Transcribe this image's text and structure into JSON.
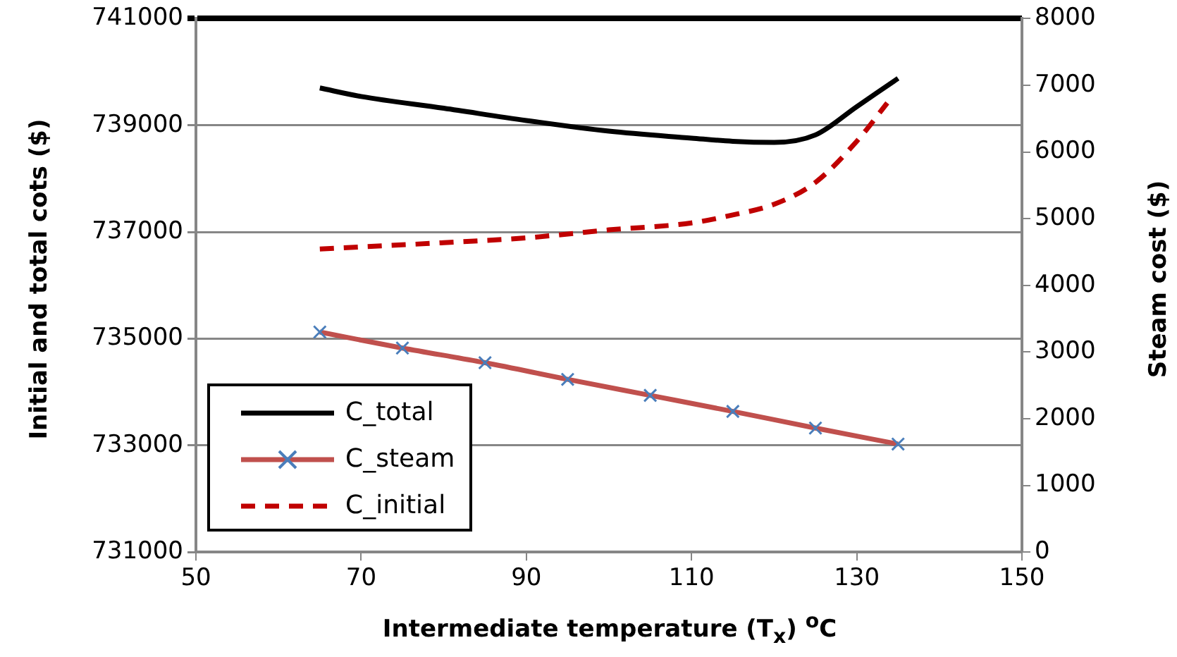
{
  "chart_data": {
    "type": "line",
    "xlabel": "Intermediate temperature (T$_{x}$) $^{o}$C",
    "ylabel": "Initial and total cots ($)",
    "y2label": "Steam cost ($)",
    "xlim": [
      50,
      150
    ],
    "xticks": [
      50,
      70,
      90,
      110,
      130,
      150
    ],
    "ylim": [
      731000,
      741000
    ],
    "yticks": [
      731000,
      733000,
      735000,
      737000,
      739000,
      741000
    ],
    "y2lim": [
      0,
      8000
    ],
    "y2ticks": [
      0,
      1000,
      2000,
      3000,
      4000,
      5000,
      6000,
      7000,
      8000
    ],
    "grid": "y",
    "legend": "bottom left",
    "series": [
      {
        "name": "C_total",
        "color": "#000000",
        "marker": "none",
        "line_style": "solid",
        "x": [
          65,
          70,
          80,
          90,
          100,
          110,
          115,
          120,
          125,
          130,
          135
        ],
        "values": [
          739700,
          739540,
          739320,
          739090,
          738890,
          738760,
          738700,
          738680,
          738820,
          739350,
          739880
        ]
      },
      {
        "name": "C_steam",
        "color": "#c0504d",
        "marker": "cross",
        "line_style": "solid",
        "axis": "y2",
        "x": [
          65,
          75,
          85,
          95,
          105,
          115,
          125,
          135
        ],
        "values": [
          3300,
          3060,
          2840,
          2590,
          2350,
          2110,
          1860,
          1620
        ]
      },
      {
        "name": "C_initial",
        "color": "#c00000",
        "marker": "none",
        "line_style": "dashed",
        "x": [
          65,
          70,
          80,
          90,
          100,
          110,
          115,
          120,
          125,
          130,
          133.7
        ],
        "values": [
          736680,
          736720,
          736800,
          736890,
          737040,
          737170,
          737320,
          737520,
          737930,
          738700,
          739420
        ]
      }
    ]
  }
}
